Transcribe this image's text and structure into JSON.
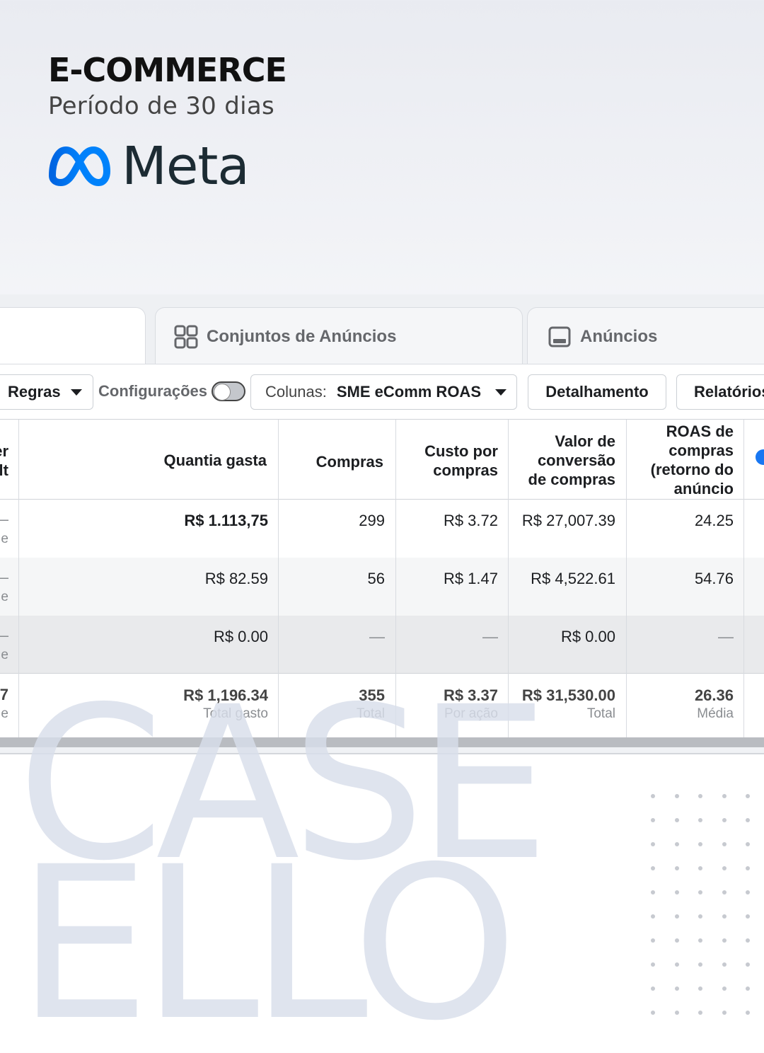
{
  "header": {
    "title": "E-COMMERCE",
    "subtitle": "Período de 30 dias",
    "brand": "Meta",
    "brand_color": "#0081fb"
  },
  "tabs": [
    {
      "label": "Conjuntos de Anúncios",
      "icon": "ad-sets-grid-icon"
    },
    {
      "label": "Anúncios",
      "icon": "ad-icon"
    }
  ],
  "toolbar": {
    "rules_label": "Regras",
    "settings_label": "Configurações",
    "columns_prefix": "Colunas:",
    "columns_value": "SME eComm ROAS",
    "breakdown_label": "Detalhamento",
    "reports_label": "Relatórios"
  },
  "table": {
    "left_cut_header": [
      "er",
      "lt"
    ],
    "headers": {
      "spent": "Quantia gasta",
      "purchases": "Compras",
      "cost_per_purchase": [
        "Custo por",
        "compras"
      ],
      "conversion_value": [
        "Valor de",
        "conversão",
        "de compras"
      ],
      "roas": [
        "ROAS de",
        "compras",
        "(retorno do",
        "anúncio"
      ]
    },
    "rows": [
      {
        "left_a": "—",
        "left_b": "e",
        "spent": "R$ 1.113,75",
        "purchases": "299",
        "cpp": "R$ 3.72",
        "value": "R$ 27,007.39",
        "roas": "24.25"
      },
      {
        "left_a": "—",
        "left_b": "e",
        "spent": "R$ 82.59",
        "purchases": "56",
        "cpp": "R$ 1.47",
        "value": "R$ 4,522.61",
        "roas": "54.76"
      },
      {
        "left_a": "—",
        "left_b": "e",
        "spent": "R$ 0.00",
        "purchases": "—",
        "cpp": "—",
        "value": "R$ 0.00",
        "roas": "—"
      }
    ],
    "totals": {
      "left_a": "7",
      "left_b": "e",
      "spent": "R$ 1,196.34",
      "spent_sub": "Total gasto",
      "purchases": "355",
      "purchases_sub": "Total",
      "cpp": "R$ 3.37",
      "cpp_sub": "Por ação",
      "value": "R$ 31,530.00",
      "value_sub": "Total",
      "roas": "26.36",
      "roas_sub": "Média"
    }
  },
  "watermark": {
    "line1": "CASE",
    "line2": "ELLO"
  }
}
